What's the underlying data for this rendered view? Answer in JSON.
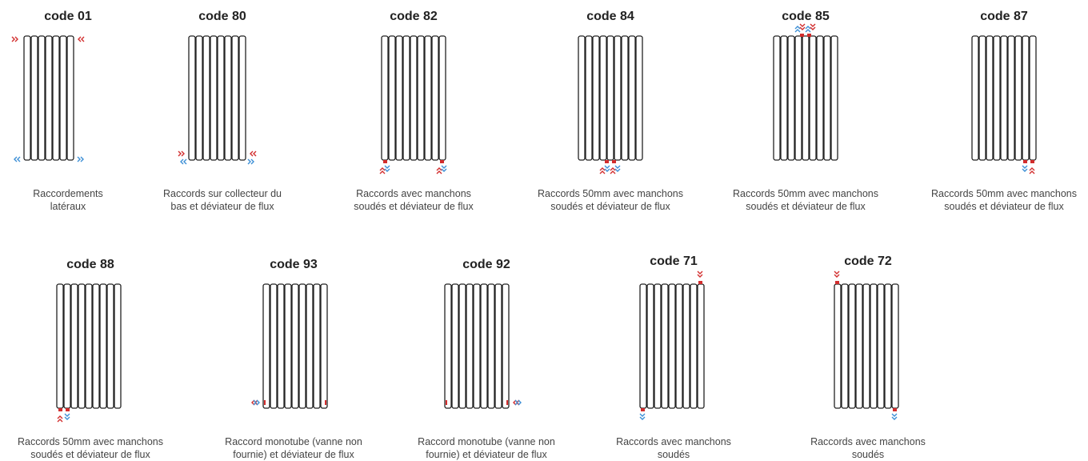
{
  "colors": {
    "hot": "#d22d2d",
    "cold": "#3c8fd6",
    "outline": "#222222"
  },
  "rows": [
    {
      "items": [
        {
          "title": "code 01",
          "desc": [
            "Raccordements",
            "latéraux"
          ]
        },
        {
          "title": "code 80",
          "desc": [
            "Raccords sur collecteur du",
            "bas et déviateur de flux"
          ]
        },
        {
          "title": "code 82",
          "desc": [
            "Raccords avec manchons",
            "soudés et déviateur de flux"
          ]
        },
        {
          "title": "code 84",
          "desc": [
            "Raccords 50mm avec manchons",
            "soudés et déviateur de flux"
          ]
        },
        {
          "title": "code 85",
          "desc": [
            "Raccords 50mm avec manchons",
            "soudés et déviateur de flux"
          ]
        },
        {
          "title": "code 87",
          "desc": [
            "Raccords 50mm avec manchons",
            "soudés et déviateur de flux"
          ]
        }
      ]
    },
    {
      "items": [
        {
          "title": "code 88",
          "desc": [
            "Raccords 50mm avec manchons",
            "soudés et déviateur de flux"
          ]
        },
        {
          "title": "code 93",
          "desc": [
            "Raccord monotube (vanne non",
            "fournie) et déviateur de flux"
          ]
        },
        {
          "title": "code 92",
          "desc": [
            "Raccord monotube (vanne non",
            "fournie) et déviateur de flux"
          ]
        },
        {
          "title": "code 71",
          "desc": [
            "Raccords avec manchons",
            "soudés"
          ]
        },
        {
          "title": "code 72",
          "desc": [
            "Raccords avec manchons",
            "soudés"
          ]
        }
      ]
    }
  ]
}
